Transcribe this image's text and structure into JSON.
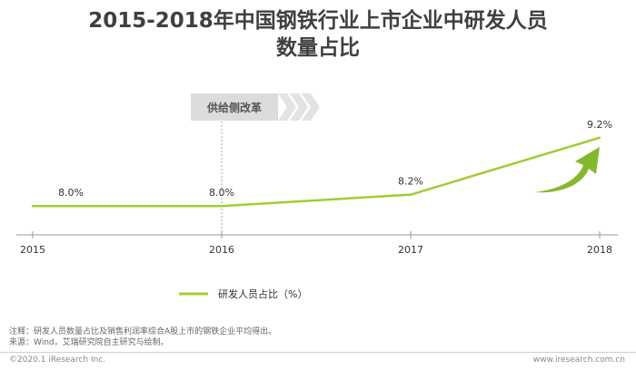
{
  "header": {
    "title_line1": "2015-2018年中国钢铁行业上市企业中研发人员",
    "title_line2": "数量占比"
  },
  "chart_data": {
    "type": "line",
    "title": "2015-2018年中国钢铁行业上市企业中研发人员数量占比",
    "categories": [
      "2015",
      "2016",
      "2017",
      "2018"
    ],
    "series": [
      {
        "name": "研发人员占比（%）",
        "values": [
          8.0,
          8.0,
          8.2,
          9.2
        ],
        "labels": [
          "",
          "8.0%",
          "8.2%",
          "9.2%"
        ]
      }
    ],
    "extra_label": "8.0%",
    "ylim": [
      7.0,
      9.5
    ],
    "annotation": "供给侧改革",
    "annotation_at": "2016",
    "legend_position": "bottom-center",
    "line_color": "#a3cc33",
    "arrow_color": "#86b82e",
    "annotation_box_color": "#dcdcdc",
    "annotation_chevron_color": "#e3e3e3"
  },
  "notes": {
    "note": "注释：研发人员数量占比及销售利润率综合A股上市的钢铁企业平均得出。",
    "source": "来源：Wind，艾瑞研究院自主研究与绘制。"
  },
  "footer": {
    "copyright": "©2020.1 iResearch Inc.",
    "site": "www.iresearch.com.cn"
  }
}
